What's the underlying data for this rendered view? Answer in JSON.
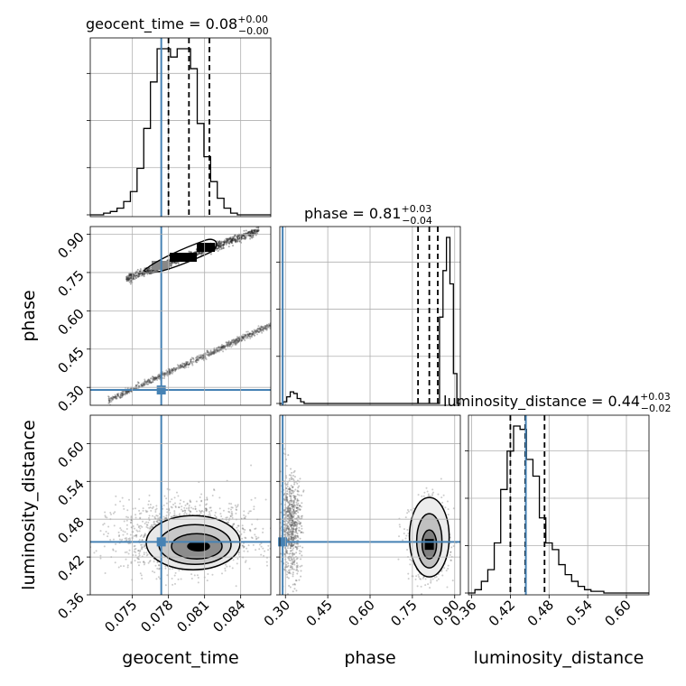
{
  "chart_data": {
    "type": "corner",
    "parameters": [
      "geocent_time",
      "phase",
      "luminosity_distance"
    ],
    "truth_color": "#4682b4",
    "grid": true,
    "diagonal": [
      {
        "parameter": "geocent_time",
        "title": {
          "prefix": "geocent_time = ",
          "value": "0.08",
          "plus": "+0.00",
          "minus": "−0.00"
        },
        "xlim": [
          0.0715,
          0.0865
        ],
        "truth": 0.0774,
        "quantiles": [
          0.078,
          0.0797,
          0.0814
        ],
        "hist_values": [
          0,
          0,
          1,
          2,
          4,
          8,
          14,
          28,
          52,
          80,
          100,
          100,
          95,
          100,
          100,
          88,
          55,
          35,
          20,
          10,
          4,
          1,
          0,
          0,
          0,
          0,
          0
        ]
      },
      {
        "parameter": "phase",
        "title": {
          "prefix": "phase = ",
          "value": "0.81",
          "plus": "+0.03",
          "minus": "−0.04"
        },
        "xlim": [
          0.28,
          0.92
        ],
        "truth": 0.29,
        "quantiles": [
          0.77,
          0.81,
          0.84
        ],
        "hist_values": [
          0,
          1,
          4,
          7,
          6,
          3,
          1,
          0,
          0,
          0,
          0,
          0,
          0,
          0,
          0,
          0,
          0,
          0,
          0,
          0,
          0,
          0,
          0,
          0,
          0,
          0,
          0,
          0,
          0,
          0,
          0,
          0,
          0,
          0,
          0,
          0,
          0,
          0,
          0,
          0,
          0,
          0,
          0,
          0,
          0,
          0,
          52,
          80,
          100,
          72,
          18,
          0
        ]
      },
      {
        "parameter": "luminosity_distance",
        "title": {
          "prefix": "luminosity_distance = ",
          "value": "0.44",
          "plus": "+0.03",
          "minus": "−0.02"
        },
        "xlim": [
          0.355,
          0.635
        ],
        "truth": 0.444,
        "quantiles": [
          0.42,
          0.443,
          0.473
        ],
        "hist_values": [
          0,
          2,
          7,
          14,
          30,
          62,
          85,
          100,
          98,
          80,
          70,
          45,
          30,
          26,
          17,
          11,
          7,
          4,
          2,
          1,
          1,
          0,
          0,
          0,
          0,
          0,
          0,
          0
        ]
      }
    ],
    "pairs": [
      {
        "x": "geocent_time",
        "y": "phase",
        "xlim": [
          0.0715,
          0.0865
        ],
        "ylim": [
          0.23,
          0.93
        ],
        "truth": [
          0.0774,
          0.29
        ]
      },
      {
        "x": "geocent_time",
        "y": "luminosity_distance",
        "xlim": [
          0.0715,
          0.0865
        ],
        "ylim": [
          0.36,
          0.645
        ],
        "truth": [
          0.0774,
          0.444
        ]
      },
      {
        "x": "phase",
        "y": "luminosity_distance",
        "xlim": [
          0.28,
          0.92
        ],
        "ylim": [
          0.36,
          0.645
        ],
        "truth": [
          0.29,
          0.444
        ]
      }
    ],
    "x_ticks": {
      "geocent_time": [
        "0.075",
        "0.078",
        "0.081",
        "0.084"
      ],
      "phase": [
        "0.30",
        "0.45",
        "0.60",
        "0.75",
        "0.90"
      ],
      "luminosity_distance": [
        "0.36",
        "0.42",
        "0.48",
        "0.54",
        "0.60"
      ]
    },
    "y_ticks": {
      "phase": [
        "0.30",
        "0.45",
        "0.60",
        "0.75",
        "0.90"
      ],
      "luminosity_distance": [
        "0.36",
        "0.42",
        "0.48",
        "0.54",
        "0.60"
      ]
    },
    "axis_labels": {
      "geocent_time": "geocent_time",
      "phase": "phase",
      "luminosity_distance": "luminosity_distance"
    }
  }
}
